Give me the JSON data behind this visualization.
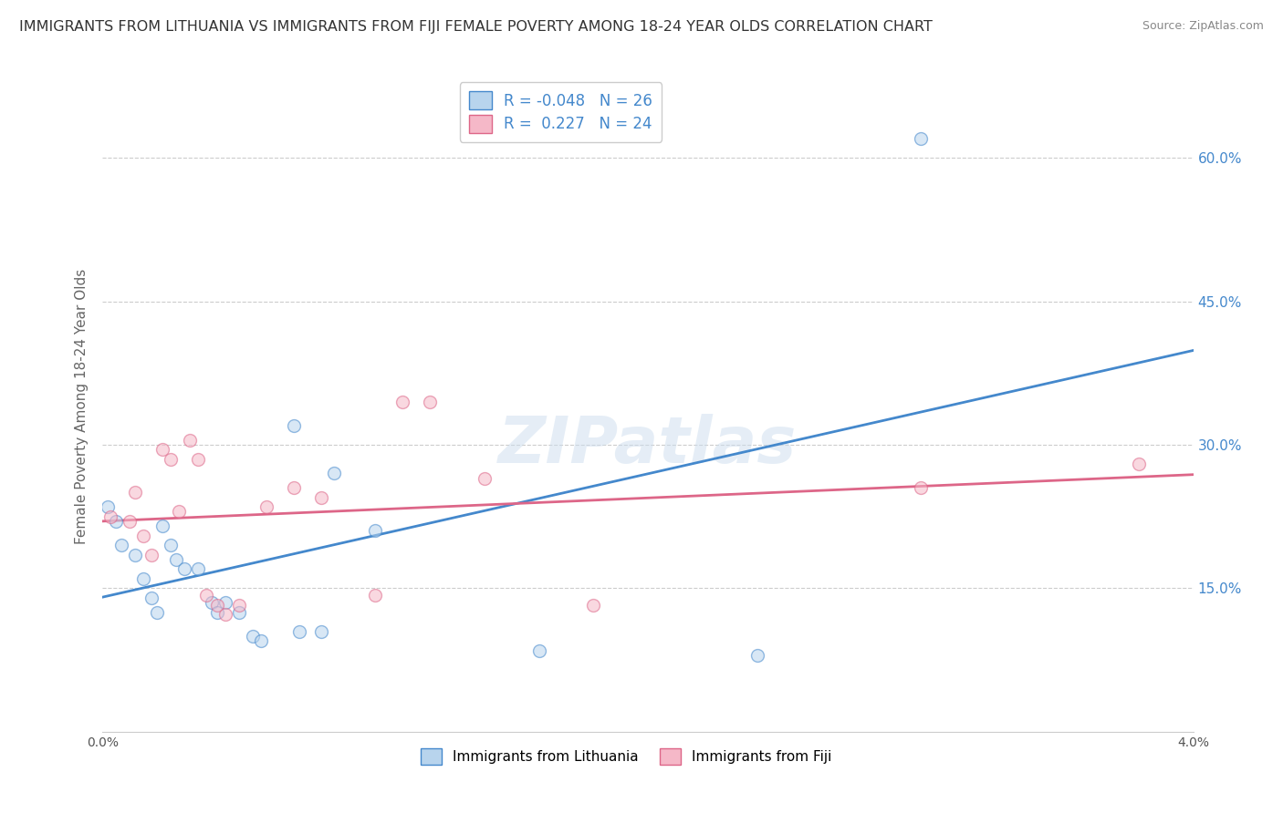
{
  "title": "IMMIGRANTS FROM LITHUANIA VS IMMIGRANTS FROM FIJI FEMALE POVERTY AMONG 18-24 YEAR OLDS CORRELATION CHART",
  "source": "Source: ZipAtlas.com",
  "ylabel": "Female Poverty Among 18-24 Year Olds",
  "legend_entries": [
    {
      "label": "Immigrants from Lithuania",
      "R": "-0.048",
      "N": "26",
      "color": "#b8d4ed"
    },
    {
      "label": "Immigrants from Fiji",
      "R": "0.227",
      "N": "24",
      "color": "#f5b8c8"
    }
  ],
  "lithuania_scatter": [
    [
      0.0002,
      0.235
    ],
    [
      0.0005,
      0.22
    ],
    [
      0.0007,
      0.195
    ],
    [
      0.0012,
      0.185
    ],
    [
      0.0015,
      0.16
    ],
    [
      0.0018,
      0.14
    ],
    [
      0.002,
      0.125
    ],
    [
      0.0022,
      0.215
    ],
    [
      0.0025,
      0.195
    ],
    [
      0.0027,
      0.18
    ],
    [
      0.003,
      0.17
    ],
    [
      0.0035,
      0.17
    ],
    [
      0.004,
      0.135
    ],
    [
      0.0042,
      0.125
    ],
    [
      0.0045,
      0.135
    ],
    [
      0.005,
      0.125
    ],
    [
      0.0055,
      0.1
    ],
    [
      0.0058,
      0.095
    ],
    [
      0.007,
      0.32
    ],
    [
      0.0072,
      0.105
    ],
    [
      0.008,
      0.105
    ],
    [
      0.0085,
      0.27
    ],
    [
      0.01,
      0.21
    ],
    [
      0.016,
      0.085
    ],
    [
      0.024,
      0.08
    ],
    [
      0.03,
      0.62
    ]
  ],
  "fiji_scatter": [
    [
      0.0003,
      0.225
    ],
    [
      0.001,
      0.22
    ],
    [
      0.0012,
      0.25
    ],
    [
      0.0015,
      0.205
    ],
    [
      0.0018,
      0.185
    ],
    [
      0.0022,
      0.295
    ],
    [
      0.0025,
      0.285
    ],
    [
      0.0028,
      0.23
    ],
    [
      0.0032,
      0.305
    ],
    [
      0.0035,
      0.285
    ],
    [
      0.0038,
      0.143
    ],
    [
      0.0042,
      0.132
    ],
    [
      0.0045,
      0.123
    ],
    [
      0.005,
      0.132
    ],
    [
      0.006,
      0.235
    ],
    [
      0.007,
      0.255
    ],
    [
      0.008,
      0.245
    ],
    [
      0.01,
      0.143
    ],
    [
      0.011,
      0.345
    ],
    [
      0.012,
      0.345
    ],
    [
      0.014,
      0.265
    ],
    [
      0.018,
      0.132
    ],
    [
      0.03,
      0.255
    ],
    [
      0.038,
      0.28
    ]
  ],
  "xlim": [
    0.0,
    0.04
  ],
  "ylim": [
    0.0,
    0.68
  ],
  "yticks": [
    0.15,
    0.3,
    0.45,
    0.6
  ],
  "ytick_labels": [
    "15.0%",
    "30.0%",
    "45.0%",
    "60.0%"
  ],
  "background_color": "#ffffff",
  "grid_color": "#cccccc",
  "scatter_size": 100,
  "scatter_alpha": 0.55,
  "line_color_lithuania": "#4488cc",
  "line_color_fiji": "#dd6688",
  "title_fontsize": 11.5,
  "axis_label_fontsize": 11,
  "legend_fontsize": 12,
  "watermark": "ZIPatlas"
}
